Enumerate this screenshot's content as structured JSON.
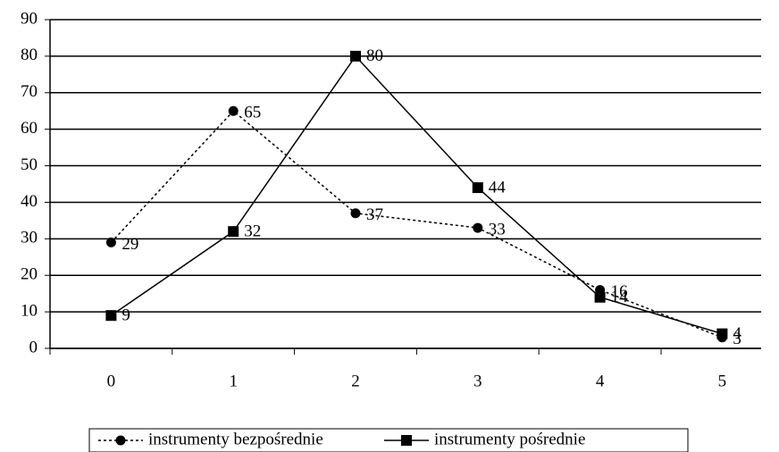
{
  "chart_data": {
    "type": "line",
    "categories": [
      "0",
      "1",
      "2",
      "3",
      "4",
      "5"
    ],
    "series": [
      {
        "name": "instrumenty bezpośrednie",
        "color": "#000000",
        "values": [
          29,
          65,
          37,
          33,
          16,
          3
        ]
      },
      {
        "name": "instrumenty pośrednie",
        "color": "#000000",
        "values": [
          9,
          32,
          80,
          44,
          14,
          4
        ]
      }
    ],
    "ylim": [
      0,
      90
    ],
    "yticks": [
      0,
      10,
      20,
      30,
      40,
      50,
      60,
      70,
      80,
      90
    ],
    "grid": true,
    "legend": "bottom"
  }
}
